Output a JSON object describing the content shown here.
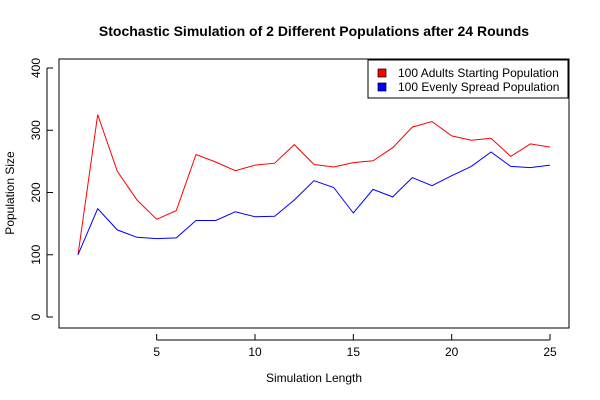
{
  "chart_data": {
    "type": "line",
    "title": "Stochastic Simulation of 2 Different Populations after 24 Rounds",
    "xlabel": "Simulation Length",
    "ylabel": "Population Size",
    "xlim": [
      1,
      25
    ],
    "ylim": [
      0,
      400
    ],
    "x_ticks": [
      5,
      10,
      15,
      20,
      25
    ],
    "y_ticks": [
      0,
      100,
      200,
      300,
      400
    ],
    "grid": false,
    "legend_position": "top-right",
    "x": [
      1,
      2,
      3,
      4,
      5,
      6,
      7,
      8,
      9,
      10,
      11,
      12,
      13,
      14,
      15,
      16,
      17,
      18,
      19,
      20,
      21,
      22,
      23,
      24,
      25
    ],
    "series": [
      {
        "name": "100 Adults Starting Population",
        "color": "#ff0000",
        "values": [
          100,
          325,
          234,
          188,
          157,
          171,
          261,
          249,
          235,
          244,
          247,
          277,
          245,
          241,
          248,
          251,
          272,
          305,
          314,
          291,
          284,
          287,
          258,
          278,
          273
        ]
      },
      {
        "name": "100 Evenly Spread Population",
        "color": "#0000ff",
        "values": [
          100,
          174,
          140,
          128,
          126,
          127,
          155,
          155,
          169,
          161,
          162,
          188,
          219,
          208,
          167,
          205,
          193,
          224,
          211,
          227,
          242,
          265,
          242,
          240,
          244
        ]
      }
    ]
  }
}
